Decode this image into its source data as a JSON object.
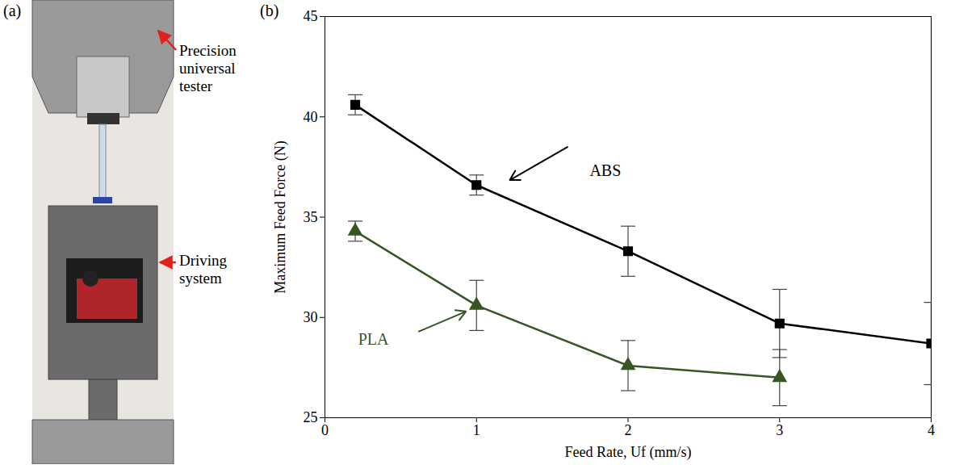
{
  "chart_data": {
    "type": "line",
    "panel_label": "(b)",
    "x_label": "Feed Rate, Uf (mm/s)",
    "y_label": "Maximum Feed Force (N)",
    "x": [
      0.2,
      1,
      2,
      3,
      4
    ],
    "series": [
      {
        "name": "ABS",
        "color": "#000000",
        "marker": "square",
        "line_style": "solid",
        "values": [
          40.6,
          36.6,
          33.3,
          29.7,
          28.7
        ],
        "errors": [
          0.5,
          0.5,
          1.25,
          1.7,
          2.05
        ]
      },
      {
        "name": "PLA",
        "color": "#375623",
        "marker": "triangle",
        "line_style": "solid",
        "values": [
          34.3,
          30.6,
          27.6,
          27.0,
          null
        ],
        "errors": [
          0.5,
          1.25,
          1.25,
          1.4,
          null
        ]
      }
    ],
    "annotations": [
      {
        "text": "ABS",
        "x": 1.85,
        "y": 37.3,
        "arrow_from": [
          1.6,
          38.5
        ],
        "arrow_to": [
          1.22,
          36.85
        ],
        "color": "#000000"
      },
      {
        "text": "PLA",
        "x": 0.32,
        "y": 28.9,
        "arrow_from": [
          0.62,
          29.3
        ],
        "arrow_to": [
          0.93,
          30.3
        ],
        "color": "#375623"
      }
    ],
    "xlim": [
      0,
      4
    ],
    "xticks": [
      0,
      1,
      2,
      3,
      4
    ],
    "ylim": [
      25,
      45
    ],
    "yticks": [
      25,
      30,
      35,
      40,
      45
    ],
    "grid": false
  },
  "photo_panel": {
    "panel_label": "(a)",
    "labels": [
      "Precision universal tester",
      "Driving system"
    ]
  }
}
